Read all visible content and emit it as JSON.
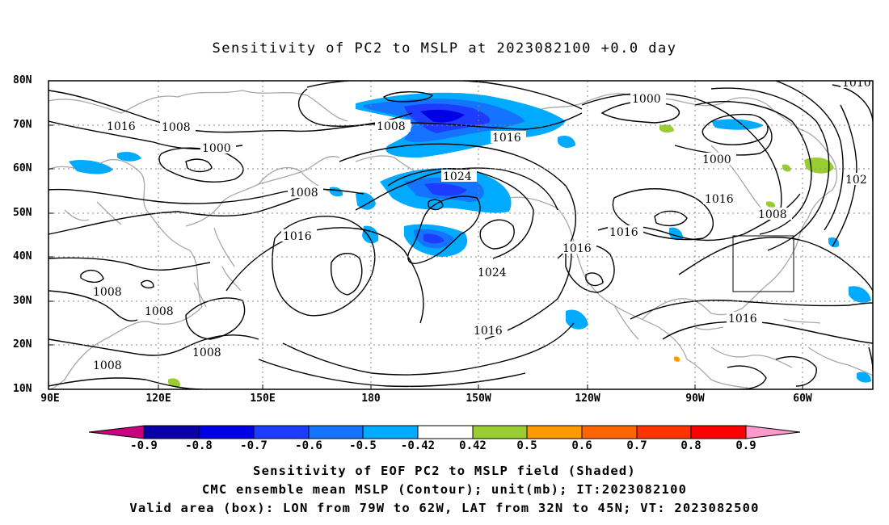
{
  "title": "Sensitivity of PC2 to MSLP at 2023082100 +0.0 day",
  "lat_labels": [
    "80N",
    "70N",
    "60N",
    "50N",
    "40N",
    "30N",
    "20N",
    "10N"
  ],
  "lon_labels": [
    "90E",
    "120E",
    "150E",
    "180",
    "150W",
    "120W",
    "90W",
    "60W"
  ],
  "colorbar": {
    "ticks": [
      "-0.9",
      "-0.8",
      "-0.7",
      "-0.6",
      "-0.5",
      "-0.42",
      "0.42",
      "0.5",
      "0.6",
      "0.7",
      "0.8",
      "0.9"
    ],
    "colors": [
      "#c8007f",
      "#0a00a8",
      "#0000e6",
      "#1e3cff",
      "#1473ff",
      "#00aaff",
      "#ffffff",
      "#9acd32",
      "#ff9900",
      "#ff6600",
      "#ff3300",
      "#ff0000",
      "#ff99cc"
    ]
  },
  "contour_labels": [
    "1016",
    "1008",
    "1000",
    "1008",
    "1016",
    "1024",
    "1016",
    "1008",
    "1016",
    "1024",
    "1008",
    "1008",
    "1008",
    "1008",
    "1016",
    "1000",
    "1016",
    "1000",
    "1008",
    "1016",
    "1016",
    "1010",
    "102"
  ],
  "caption": {
    "line1": "Sensitivity of EOF PC2 to MSLP field (Shaded)",
    "line2": "CMC ensemble mean MSLP (Contour); unit(mb); IT:2023082100",
    "line3": "Valid area (box): LON from 79W to 62W, LAT from 32N to 45N; VT: 2023082500"
  }
}
